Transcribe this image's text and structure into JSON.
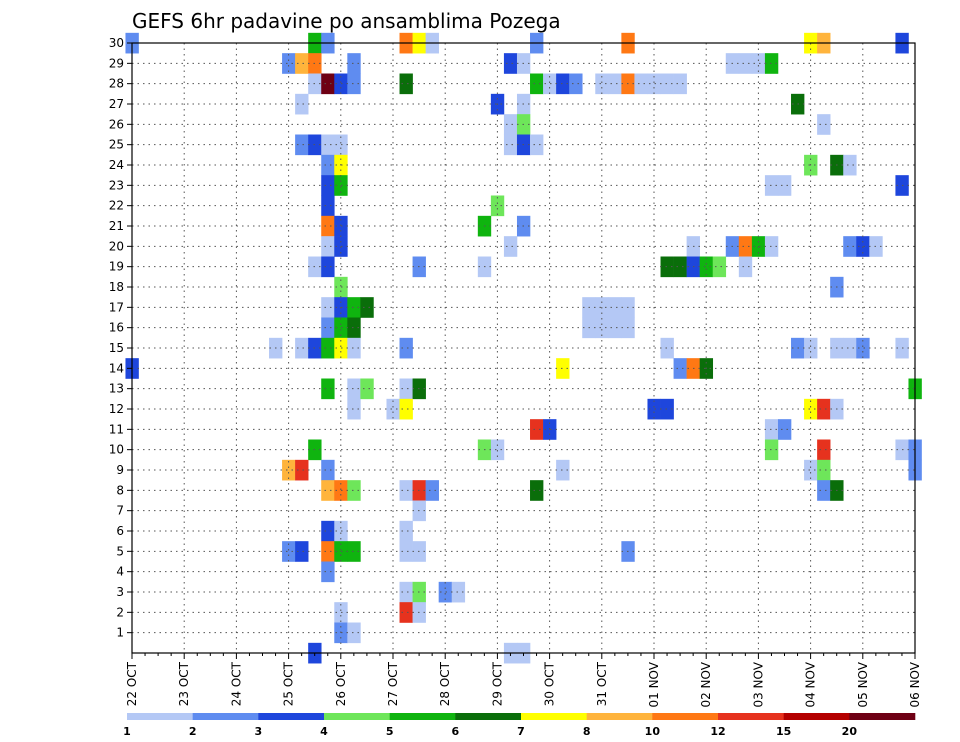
{
  "chart_data": {
    "type": "heatmap",
    "title": "GEFS 6hr padavine po ansamblima Pozega",
    "xlabel": "",
    "ylabel": "",
    "x_tick_labels": [
      "22 OCT",
      "23 OCT",
      "24 OCT",
      "25 OCT",
      "26 OCT",
      "27 OCT",
      "28 OCT",
      "29 OCT",
      "30 OCT",
      "31 OCT",
      "01 NOV",
      "02 NOV",
      "03 NOV",
      "04 NOV",
      "05 NOV",
      "06 NOV"
    ],
    "y_tick_labels": [
      "1",
      "2",
      "3",
      "4",
      "5",
      "6",
      "7",
      "8",
      "9",
      "10",
      "11",
      "12",
      "13",
      "14",
      "15",
      "16",
      "17",
      "18",
      "19",
      "20",
      "21",
      "22",
      "23",
      "24",
      "25",
      "26",
      "27",
      "28",
      "29",
      "30"
    ],
    "xlim_steps": [
      0,
      60
    ],
    "ylim_members": [
      0,
      30
    ],
    "grid": "dotted",
    "color_scale": {
      "boundaries": [
        "1",
        "2",
        "3",
        "4",
        "5",
        "6",
        "7",
        "8",
        "10",
        "12",
        "15",
        "20"
      ],
      "colors": [
        "#b4c8f5",
        "#5f8cf0",
        "#1e46dc",
        "#6ee65a",
        "#0fb40f",
        "#0a6e0a",
        "#ffff00",
        "#ffb43c",
        "#ff7814",
        "#e6321e",
        "#b40000",
        "#6e0014"
      ]
    },
    "cells": [
      {
        "step": 0,
        "member": 30,
        "level": 2
      },
      {
        "step": 14,
        "member": 30,
        "level": 5
      },
      {
        "step": 15,
        "member": 30,
        "level": 2
      },
      {
        "step": 21,
        "member": 30,
        "level": 9
      },
      {
        "step": 22,
        "member": 30,
        "level": 7
      },
      {
        "step": 23,
        "member": 30,
        "level": 1
      },
      {
        "step": 31,
        "member": 30,
        "level": 2
      },
      {
        "step": 38,
        "member": 30,
        "level": 9
      },
      {
        "step": 52,
        "member": 30,
        "level": 7
      },
      {
        "step": 53,
        "member": 30,
        "level": 8
      },
      {
        "step": 59,
        "member": 30,
        "level": 3
      },
      {
        "step": 12,
        "member": 29,
        "level": 2
      },
      {
        "step": 13,
        "member": 29,
        "level": 8
      },
      {
        "step": 14,
        "member": 29,
        "level": 9
      },
      {
        "step": 17,
        "member": 29,
        "level": 2
      },
      {
        "step": 29,
        "member": 29,
        "level": 3
      },
      {
        "step": 30,
        "member": 29,
        "level": 1
      },
      {
        "step": 46,
        "member": 29,
        "level": 1
      },
      {
        "step": 47,
        "member": 29,
        "level": 1
      },
      {
        "step": 48,
        "member": 29,
        "level": 1
      },
      {
        "step": 49,
        "member": 29,
        "level": 5
      },
      {
        "step": 14,
        "member": 28,
        "level": 1
      },
      {
        "step": 15,
        "member": 28,
        "level": 12
      },
      {
        "step": 16,
        "member": 28,
        "level": 3
      },
      {
        "step": 17,
        "member": 28,
        "level": 2
      },
      {
        "step": 21,
        "member": 28,
        "level": 6
      },
      {
        "step": 31,
        "member": 28,
        "level": 5
      },
      {
        "step": 32,
        "member": 28,
        "level": 1
      },
      {
        "step": 33,
        "member": 28,
        "level": 3
      },
      {
        "step": 34,
        "member": 28,
        "level": 2
      },
      {
        "step": 36,
        "member": 28,
        "level": 1
      },
      {
        "step": 37,
        "member": 28,
        "level": 1
      },
      {
        "step": 38,
        "member": 28,
        "level": 9
      },
      {
        "step": 39,
        "member": 28,
        "level": 1
      },
      {
        "step": 40,
        "member": 28,
        "level": 1
      },
      {
        "step": 41,
        "member": 28,
        "level": 1
      },
      {
        "step": 42,
        "member": 28,
        "level": 1
      },
      {
        "step": 13,
        "member": 27,
        "level": 1
      },
      {
        "step": 28,
        "member": 27,
        "level": 3
      },
      {
        "step": 30,
        "member": 27,
        "level": 1
      },
      {
        "step": 51,
        "member": 27,
        "level": 6
      },
      {
        "step": 29,
        "member": 26,
        "level": 1
      },
      {
        "step": 30,
        "member": 26,
        "level": 4
      },
      {
        "step": 53,
        "member": 26,
        "level": 1
      },
      {
        "step": 13,
        "member": 25,
        "level": 2
      },
      {
        "step": 14,
        "member": 25,
        "level": 3
      },
      {
        "step": 15,
        "member": 25,
        "level": 1
      },
      {
        "step": 16,
        "member": 25,
        "level": 1
      },
      {
        "step": 29,
        "member": 25,
        "level": 1
      },
      {
        "step": 30,
        "member": 25,
        "level": 3
      },
      {
        "step": 31,
        "member": 25,
        "level": 1
      },
      {
        "step": 15,
        "member": 24,
        "level": 2
      },
      {
        "step": 16,
        "member": 24,
        "level": 7
      },
      {
        "step": 52,
        "member": 24,
        "level": 4
      },
      {
        "step": 54,
        "member": 24,
        "level": 6
      },
      {
        "step": 55,
        "member": 24,
        "level": 1
      },
      {
        "step": 15,
        "member": 23,
        "level": 3
      },
      {
        "step": 16,
        "member": 23,
        "level": 5
      },
      {
        "step": 49,
        "member": 23,
        "level": 1
      },
      {
        "step": 50,
        "member": 23,
        "level": 1
      },
      {
        "step": 59,
        "member": 23,
        "level": 3
      },
      {
        "step": 15,
        "member": 22,
        "level": 3
      },
      {
        "step": 28,
        "member": 22,
        "level": 4
      },
      {
        "step": 15,
        "member": 21,
        "level": 9
      },
      {
        "step": 16,
        "member": 21,
        "level": 3
      },
      {
        "step": 27,
        "member": 21,
        "level": 5
      },
      {
        "step": 30,
        "member": 21,
        "level": 2
      },
      {
        "step": 15,
        "member": 20,
        "level": 1
      },
      {
        "step": 16,
        "member": 20,
        "level": 3
      },
      {
        "step": 29,
        "member": 20,
        "level": 1
      },
      {
        "step": 43,
        "member": 20,
        "level": 1
      },
      {
        "step": 46,
        "member": 20,
        "level": 2
      },
      {
        "step": 47,
        "member": 20,
        "level": 9
      },
      {
        "step": 48,
        "member": 20,
        "level": 5
      },
      {
        "step": 49,
        "member": 20,
        "level": 1
      },
      {
        "step": 55,
        "member": 20,
        "level": 2
      },
      {
        "step": 56,
        "member": 20,
        "level": 3
      },
      {
        "step": 57,
        "member": 20,
        "level": 1
      },
      {
        "step": 14,
        "member": 19,
        "level": 1
      },
      {
        "step": 15,
        "member": 19,
        "level": 3
      },
      {
        "step": 22,
        "member": 19,
        "level": 2
      },
      {
        "step": 27,
        "member": 19,
        "level": 1
      },
      {
        "step": 41,
        "member": 19,
        "level": 6
      },
      {
        "step": 42,
        "member": 19,
        "level": 6
      },
      {
        "step": 43,
        "member": 19,
        "level": 3
      },
      {
        "step": 44,
        "member": 19,
        "level": 5
      },
      {
        "step": 45,
        "member": 19,
        "level": 4
      },
      {
        "step": 47,
        "member": 19,
        "level": 1
      },
      {
        "step": 16,
        "member": 18,
        "level": 4
      },
      {
        "step": 54,
        "member": 18,
        "level": 2
      },
      {
        "step": 15,
        "member": 17,
        "level": 1
      },
      {
        "step": 16,
        "member": 17,
        "level": 3
      },
      {
        "step": 17,
        "member": 17,
        "level": 5
      },
      {
        "step": 18,
        "member": 17,
        "level": 6
      },
      {
        "step": 35,
        "member": 17,
        "level": 1
      },
      {
        "step": 36,
        "member": 17,
        "level": 1
      },
      {
        "step": 37,
        "member": 17,
        "level": 1
      },
      {
        "step": 38,
        "member": 17,
        "level": 1
      },
      {
        "step": 15,
        "member": 16,
        "level": 2
      },
      {
        "step": 16,
        "member": 16,
        "level": 5
      },
      {
        "step": 17,
        "member": 16,
        "level": 6
      },
      {
        "step": 35,
        "member": 16,
        "level": 1
      },
      {
        "step": 36,
        "member": 16,
        "level": 1
      },
      {
        "step": 37,
        "member": 16,
        "level": 1
      },
      {
        "step": 38,
        "member": 16,
        "level": 1
      },
      {
        "step": 11,
        "member": 15,
        "level": 1
      },
      {
        "step": 13,
        "member": 15,
        "level": 1
      },
      {
        "step": 14,
        "member": 15,
        "level": 3
      },
      {
        "step": 15,
        "member": 15,
        "level": 5
      },
      {
        "step": 16,
        "member": 15,
        "level": 7
      },
      {
        "step": 17,
        "member": 15,
        "level": 1
      },
      {
        "step": 21,
        "member": 15,
        "level": 2
      },
      {
        "step": 41,
        "member": 15,
        "level": 1
      },
      {
        "step": 51,
        "member": 15,
        "level": 2
      },
      {
        "step": 52,
        "member": 15,
        "level": 1
      },
      {
        "step": 54,
        "member": 15,
        "level": 1
      },
      {
        "step": 55,
        "member": 15,
        "level": 1
      },
      {
        "step": 56,
        "member": 15,
        "level": 2
      },
      {
        "step": 59,
        "member": 15,
        "level": 1
      },
      {
        "step": 0,
        "member": 14,
        "level": 3
      },
      {
        "step": 33,
        "member": 14,
        "level": 7
      },
      {
        "step": 42,
        "member": 14,
        "level": 2
      },
      {
        "step": 43,
        "member": 14,
        "level": 9
      },
      {
        "step": 44,
        "member": 14,
        "level": 6
      },
      {
        "step": 15,
        "member": 13,
        "level": 5
      },
      {
        "step": 17,
        "member": 13,
        "level": 1
      },
      {
        "step": 18,
        "member": 13,
        "level": 4
      },
      {
        "step": 21,
        "member": 13,
        "level": 1
      },
      {
        "step": 22,
        "member": 13,
        "level": 6
      },
      {
        "step": 60,
        "member": 13,
        "level": 5
      },
      {
        "step": 17,
        "member": 12,
        "level": 1
      },
      {
        "step": 20,
        "member": 12,
        "level": 1
      },
      {
        "step": 21,
        "member": 12,
        "level": 7
      },
      {
        "step": 40,
        "member": 12,
        "level": 3
      },
      {
        "step": 41,
        "member": 12,
        "level": 3
      },
      {
        "step": 52,
        "member": 12,
        "level": 7
      },
      {
        "step": 53,
        "member": 12,
        "level": 10
      },
      {
        "step": 54,
        "member": 12,
        "level": 1
      },
      {
        "step": 31,
        "member": 11,
        "level": 10
      },
      {
        "step": 32,
        "member": 11,
        "level": 3
      },
      {
        "step": 49,
        "member": 11,
        "level": 1
      },
      {
        "step": 50,
        "member": 11,
        "level": 2
      },
      {
        "step": 14,
        "member": 10,
        "level": 5
      },
      {
        "step": 27,
        "member": 10,
        "level": 4
      },
      {
        "step": 28,
        "member": 10,
        "level": 1
      },
      {
        "step": 49,
        "member": 10,
        "level": 4
      },
      {
        "step": 53,
        "member": 10,
        "level": 10
      },
      {
        "step": 59,
        "member": 10,
        "level": 1
      },
      {
        "step": 60,
        "member": 10,
        "level": 2
      },
      {
        "step": 12,
        "member": 9,
        "level": 8
      },
      {
        "step": 13,
        "member": 9,
        "level": 10
      },
      {
        "step": 15,
        "member": 9,
        "level": 2
      },
      {
        "step": 33,
        "member": 9,
        "level": 1
      },
      {
        "step": 52,
        "member": 9,
        "level": 1
      },
      {
        "step": 53,
        "member": 9,
        "level": 4
      },
      {
        "step": 60,
        "member": 9,
        "level": 2
      },
      {
        "step": 15,
        "member": 8,
        "level": 8
      },
      {
        "step": 16,
        "member": 8,
        "level": 9
      },
      {
        "step": 17,
        "member": 8,
        "level": 4
      },
      {
        "step": 21,
        "member": 8,
        "level": 1
      },
      {
        "step": 22,
        "member": 8,
        "level": 10
      },
      {
        "step": 23,
        "member": 8,
        "level": 2
      },
      {
        "step": 31,
        "member": 8,
        "level": 6
      },
      {
        "step": 53,
        "member": 8,
        "level": 2
      },
      {
        "step": 54,
        "member": 8,
        "level": 6
      },
      {
        "step": 22,
        "member": 7,
        "level": 1
      },
      {
        "step": 15,
        "member": 6,
        "level": 3
      },
      {
        "step": 16,
        "member": 6,
        "level": 1
      },
      {
        "step": 21,
        "member": 6,
        "level": 1
      },
      {
        "step": 12,
        "member": 5,
        "level": 2
      },
      {
        "step": 13,
        "member": 5,
        "level": 3
      },
      {
        "step": 15,
        "member": 5,
        "level": 9
      },
      {
        "step": 16,
        "member": 5,
        "level": 5
      },
      {
        "step": 17,
        "member": 5,
        "level": 5
      },
      {
        "step": 21,
        "member": 5,
        "level": 1
      },
      {
        "step": 22,
        "member": 5,
        "level": 1
      },
      {
        "step": 38,
        "member": 5,
        "level": 2
      },
      {
        "step": 15,
        "member": 4,
        "level": 2
      },
      {
        "step": 21,
        "member": 3,
        "level": 1
      },
      {
        "step": 22,
        "member": 3,
        "level": 4
      },
      {
        "step": 24,
        "member": 3,
        "level": 2
      },
      {
        "step": 25,
        "member": 3,
        "level": 1
      },
      {
        "step": 16,
        "member": 2,
        "level": 1
      },
      {
        "step": 21,
        "member": 2,
        "level": 10
      },
      {
        "step": 22,
        "member": 2,
        "level": 1
      },
      {
        "step": 16,
        "member": 1,
        "level": 2
      },
      {
        "step": 17,
        "member": 1,
        "level": 1
      },
      {
        "step": 14,
        "member": 0,
        "level": 3
      },
      {
        "step": 29,
        "member": 0,
        "level": 1
      },
      {
        "step": 30,
        "member": 0,
        "level": 1
      }
    ]
  }
}
